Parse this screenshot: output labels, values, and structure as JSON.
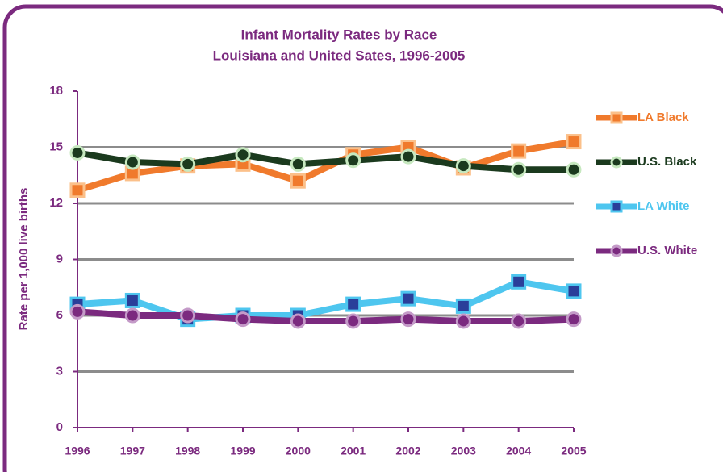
{
  "chart_data": {
    "type": "line",
    "title": "Infant Mortality Rates by Race",
    "subtitle": "Louisiana and United Sates, 1996-2005",
    "y_label": "Rate per 1,000 live births",
    "categories": [
      "1996",
      "1997",
      "1998",
      "1999",
      "2000",
      "2001",
      "2002",
      "2003",
      "2004",
      "2005"
    ],
    "series": [
      {
        "name": "LA Black",
        "color": "#f07a2c",
        "marker": "square",
        "marker_edge": "#fbc08a",
        "values": [
          12.7,
          13.6,
          14.0,
          14.1,
          13.2,
          14.6,
          15.0,
          13.9,
          14.8,
          15.3
        ]
      },
      {
        "name": "U.S. Black",
        "color": "#1b3a1e",
        "marker": "circle",
        "marker_edge": "#c6e8bf",
        "values": [
          14.7,
          14.2,
          14.1,
          14.6,
          14.1,
          14.3,
          14.5,
          14.0,
          13.8,
          13.8
        ]
      },
      {
        "name": "LA White",
        "color": "#4ec6ef",
        "marker": "square",
        "marker_edge": "#2a3f9a",
        "values": [
          6.6,
          6.8,
          5.8,
          6.0,
          6.0,
          6.6,
          6.9,
          6.5,
          7.8,
          7.3
        ]
      },
      {
        "name": "U.S. White",
        "color": "#7b2a7f",
        "marker": "circle",
        "marker_edge": "#c49ac8",
        "values": [
          6.2,
          6.0,
          6.0,
          5.8,
          5.7,
          5.7,
          5.8,
          5.7,
          5.7,
          5.8
        ]
      }
    ],
    "ylim": [
      0,
      18
    ],
    "yticks": [
      0,
      3,
      6,
      9,
      12,
      15,
      18
    ],
    "grid": true,
    "legend": "right"
  }
}
